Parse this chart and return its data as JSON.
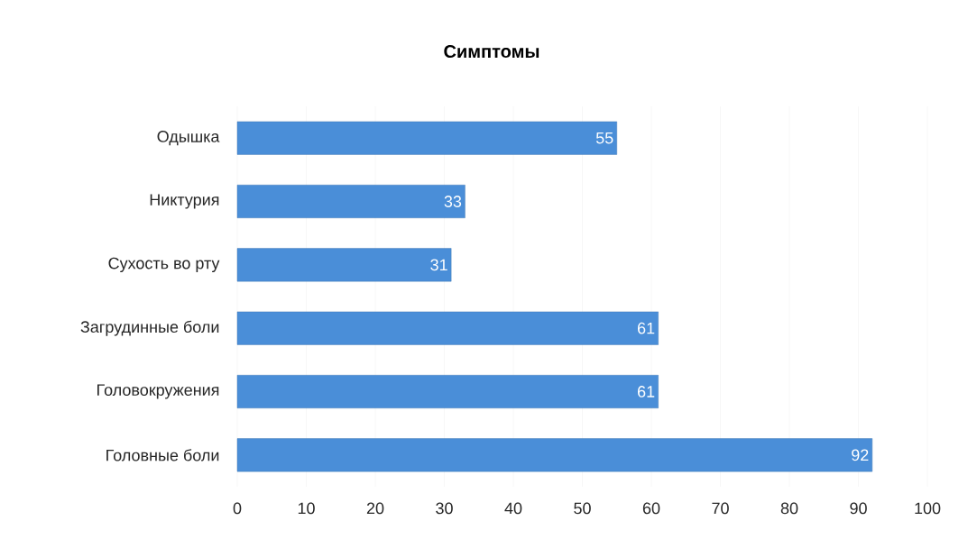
{
  "chart_data": {
    "type": "bar",
    "orientation": "horizontal",
    "title": "Симптомы",
    "categories": [
      "Одышка",
      "Никтурия",
      "Сухость во рту",
      "Загрудинные боли",
      "Головокружения",
      "Головные боли"
    ],
    "values": [
      55,
      33,
      31,
      61,
      61,
      92
    ],
    "color": "#4a8ed8",
    "xlim": [
      0,
      100
    ],
    "xticks": [
      0,
      10,
      20,
      30,
      40,
      50,
      60,
      70,
      80,
      90,
      100
    ],
    "grid": "x",
    "data_labels": true
  }
}
